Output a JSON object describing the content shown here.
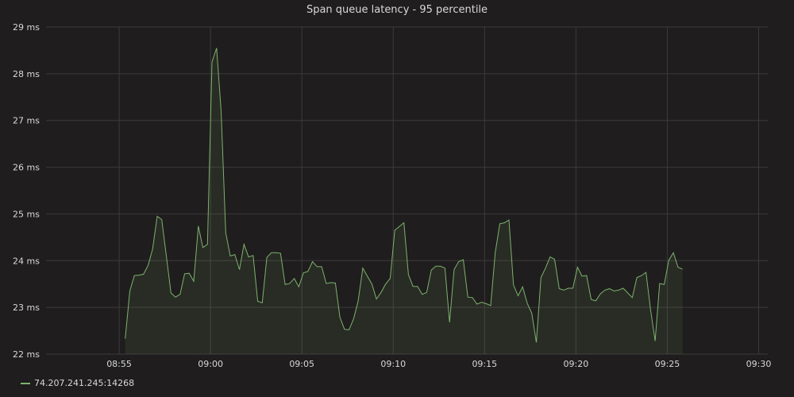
{
  "chart_data": {
    "type": "area",
    "title": "Span queue latency - 95 percentile",
    "xlabel": "",
    "ylabel": "",
    "x_ticks": [
      "08:55",
      "09:00",
      "09:05",
      "09:10",
      "09:15",
      "09:20",
      "09:25",
      "09:30"
    ],
    "y_ticks": [
      "22 ms",
      "23 ms",
      "24 ms",
      "25 ms",
      "26 ms",
      "27 ms",
      "28 ms",
      "29 ms"
    ],
    "xlim": [
      "08:51",
      "09:30:30"
    ],
    "ylim": [
      22,
      29
    ],
    "grid": true,
    "legend_position": "bottom-left",
    "series": [
      {
        "name": "74.207.241.245:14268",
        "color": "#7eb26d",
        "x": [
          "08:55:20",
          "08:55:35",
          "08:55:50",
          "08:56:05",
          "08:56:20",
          "08:56:35",
          "08:56:50",
          "08:57:05",
          "08:57:20",
          "08:57:35",
          "08:57:50",
          "08:58:05",
          "08:58:20",
          "08:58:35",
          "08:58:50",
          "08:59:05",
          "08:59:20",
          "08:59:35",
          "08:59:50",
          "09:00:05",
          "09:00:20",
          "09:00:35",
          "09:00:50",
          "09:01:05",
          "09:01:20",
          "09:01:35",
          "09:01:50",
          "09:02:05",
          "09:02:20",
          "09:02:35",
          "09:02:50",
          "09:03:05",
          "09:03:20",
          "09:03:35",
          "09:03:50",
          "09:04:05",
          "09:04:20",
          "09:04:35",
          "09:04:50",
          "09:05:05",
          "09:05:20",
          "09:05:35",
          "09:05:50",
          "09:06:05",
          "09:06:20",
          "09:06:35",
          "09:06:50",
          "09:07:05",
          "09:07:20",
          "09:07:35",
          "09:07:50",
          "09:08:05",
          "09:08:20",
          "09:08:35",
          "09:08:50",
          "09:09:05",
          "09:09:20",
          "09:09:35",
          "09:09:50",
          "09:10:05",
          "09:10:20",
          "09:10:35",
          "09:10:50",
          "09:11:05",
          "09:11:20",
          "09:11:35",
          "09:11:50",
          "09:12:05",
          "09:12:20",
          "09:12:35",
          "09:12:50",
          "09:13:05",
          "09:13:20",
          "09:13:35",
          "09:13:50",
          "09:14:05",
          "09:14:20",
          "09:14:35",
          "09:14:50",
          "09:15:05",
          "09:15:20",
          "09:15:35",
          "09:15:50",
          "09:16:05",
          "09:16:20",
          "09:16:35",
          "09:16:50",
          "09:17:05",
          "09:17:20",
          "09:17:35",
          "09:17:50",
          "09:18:05",
          "09:18:20",
          "09:18:35",
          "09:18:50",
          "09:19:05",
          "09:19:20",
          "09:19:35",
          "09:19:50",
          "09:20:05",
          "09:20:20",
          "09:20:35",
          "09:20:50",
          "09:21:05",
          "09:21:20",
          "09:21:35",
          "09:21:50",
          "09:22:05",
          "09:22:20",
          "09:22:35",
          "09:22:50",
          "09:23:05",
          "09:23:20",
          "09:23:35",
          "09:23:50",
          "09:24:05",
          "09:24:20",
          "09:24:35",
          "09:24:50",
          "09:25:05",
          "09:25:20",
          "09:25:35",
          "09:25:50"
        ],
        "values": [
          22.33,
          23.35,
          23.68,
          23.69,
          23.71,
          23.9,
          24.25,
          24.95,
          24.88,
          24.1,
          23.31,
          23.22,
          23.28,
          23.72,
          23.73,
          23.56,
          24.74,
          24.28,
          24.35,
          28.25,
          28.55,
          27.2,
          24.6,
          24.1,
          24.13,
          23.81,
          24.35,
          24.08,
          24.11,
          23.13,
          23.1,
          24.07,
          24.17,
          24.17,
          24.16,
          23.49,
          23.51,
          23.62,
          23.44,
          23.74,
          23.77,
          23.98,
          23.87,
          23.87,
          23.51,
          23.53,
          23.52,
          22.79,
          22.53,
          22.52,
          22.76,
          23.14,
          23.84,
          23.67,
          23.5,
          23.18,
          23.32,
          23.5,
          23.62,
          24.65,
          24.73,
          24.81,
          23.7,
          23.45,
          23.45,
          23.28,
          23.32,
          23.8,
          23.88,
          23.88,
          23.84,
          22.68,
          23.81,
          23.98,
          24.02,
          23.22,
          23.21,
          23.07,
          23.11,
          23.08,
          23.04,
          24.17,
          24.79,
          24.81,
          24.87,
          23.48,
          23.25,
          23.44,
          23.09,
          22.87,
          22.25,
          23.64,
          23.84,
          24.08,
          24.03,
          23.4,
          23.37,
          23.41,
          23.41,
          23.86,
          23.67,
          23.68,
          23.17,
          23.14,
          23.29,
          23.37,
          23.4,
          23.35,
          23.37,
          23.41,
          23.31,
          23.21,
          23.64,
          23.68,
          23.75,
          22.96,
          22.28,
          23.51,
          23.49,
          24.01,
          24.17,
          23.86,
          23.82
        ]
      }
    ]
  }
}
